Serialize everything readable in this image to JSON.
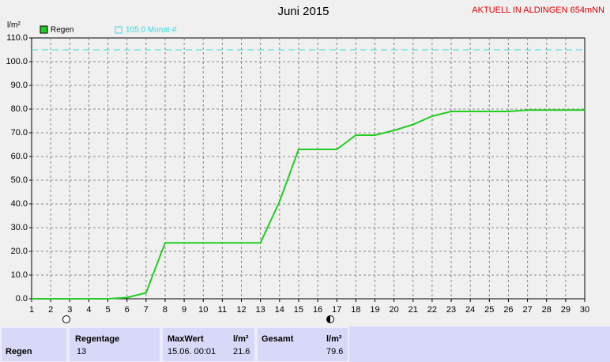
{
  "chart_data": {
    "type": "line",
    "title": "Juni 2015",
    "corner_note": "AKTUELL IN ALDINGEN 654mNN",
    "y_label": "l/m²",
    "x": [
      1,
      2,
      3,
      4,
      5,
      6,
      7,
      8,
      9,
      10,
      11,
      12,
      13,
      14,
      15,
      16,
      17,
      18,
      19,
      20,
      21,
      22,
      23,
      24,
      25,
      26,
      27,
      28,
      29,
      30
    ],
    "series": [
      {
        "name": "Regen",
        "color": "#22cc22",
        "values": [
          0,
          0,
          0,
          0,
          0,
          0.5,
          2.5,
          23.6,
          23.6,
          23.6,
          23.6,
          23.6,
          23.6,
          41,
          63,
          63,
          63,
          69,
          69,
          71,
          73.5,
          77,
          79,
          79,
          79,
          79,
          79.6,
          79.6,
          79.6,
          79.6
        ]
      }
    ],
    "reference": {
      "value": 105,
      "label": "105.0 Monat-#",
      "color": "#33dddd"
    },
    "xlim": [
      1,
      30
    ],
    "xticks": [
      1,
      2,
      3,
      4,
      5,
      6,
      7,
      8,
      9,
      10,
      11,
      12,
      13,
      14,
      15,
      16,
      17,
      18,
      19,
      20,
      21,
      22,
      23,
      24,
      25,
      26,
      27,
      28,
      29,
      30
    ],
    "ylim": [
      0,
      110
    ],
    "yticks": [
      {
        "value": 0,
        "label": "0.0"
      },
      {
        "value": 10,
        "label": "10.0"
      },
      {
        "value": 20,
        "label": "20.0"
      },
      {
        "value": 30,
        "label": "30.0"
      },
      {
        "value": 40,
        "label": "40.0"
      },
      {
        "value": 50,
        "label": "50.0"
      },
      {
        "value": 60,
        "label": "60.0"
      },
      {
        "value": 70,
        "label": "70.0"
      },
      {
        "value": 80,
        "label": "80.0"
      },
      {
        "value": 90,
        "label": "90.0"
      },
      {
        "value": 100,
        "label": "100.0"
      },
      {
        "value": 110,
        "label": "110.0"
      }
    ],
    "grid": true
  },
  "summary": {
    "row_label": "Regen",
    "regentage": {
      "header": "Regentage",
      "value": "13"
    },
    "maxwert": {
      "header": "MaxWert",
      "unit": "l/m²",
      "time": "15.06.  00:01",
      "value": "21.6"
    },
    "gesamt": {
      "header": "Gesamt",
      "unit": "l/m²",
      "value": "79.6"
    }
  }
}
